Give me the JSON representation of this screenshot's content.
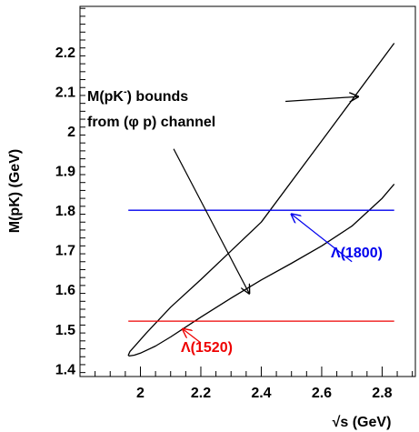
{
  "chart_data": {
    "type": "line",
    "xlabel": "√s (GeV)",
    "ylabel": "M(pK) (GeV)",
    "xlim": [
      1.8,
      2.91
    ],
    "ylim": [
      1.38,
      2.315
    ],
    "x_ticks": [
      2,
      2.2,
      2.4,
      2.6,
      2.8
    ],
    "x_tick_labels": [
      "2",
      "2.2",
      "2.4",
      "2.6",
      "2.8"
    ],
    "y_ticks": [
      1.4,
      1.5,
      1.6,
      1.7,
      1.8,
      1.9,
      2.0,
      2.1,
      2.2
    ],
    "y_tick_labels": [
      "1.4",
      "1.5",
      "1.6",
      "1.7",
      "1.8",
      "1.9",
      "2",
      "2.1",
      "2.2"
    ],
    "grid": false,
    "series": [
      {
        "color": "#000000",
        "x": [
          2.84,
          2.6,
          2.4,
          2.2,
          2.1,
          2.02,
          1.985,
          1.965,
          1.96,
          1.963,
          1.98,
          2.0,
          2.05,
          2.1,
          2.15,
          2.2,
          2.3,
          2.4,
          2.5,
          2.6,
          2.7,
          2.8,
          2.84
        ],
        "y": [
          2.222,
          1.975,
          1.77,
          1.625,
          1.555,
          1.49,
          1.46,
          1.443,
          1.434,
          1.432,
          1.434,
          1.439,
          1.457,
          1.48,
          1.505,
          1.53,
          1.578,
          1.624,
          1.666,
          1.71,
          1.76,
          1.83,
          1.866
        ]
      },
      {
        "name": "Λ(1800)",
        "color": "#0000ee",
        "x": [
          1.96,
          2.84
        ],
        "y": [
          1.8,
          1.8
        ]
      },
      {
        "name": "Λ(1520)",
        "color": "#ee0000",
        "x": [
          1.96,
          2.84
        ],
        "y": [
          1.52,
          1.52
        ]
      }
    ],
    "annotations": [
      {
        "id": "bounds",
        "text_line1": "M(pK",
        "superscript": "-",
        "text_line1_end": ") bounds",
        "text_line2": "from (φ p) channel",
        "color": "#000000",
        "arrows": [
          {
            "from": [
              2.48,
              2.075
            ],
            "to": [
              2.72,
              2.087
            ]
          },
          {
            "from": [
              2.11,
              1.955
            ],
            "to": [
              2.36,
              1.59
            ]
          }
        ]
      },
      {
        "id": "lambda1800",
        "text": "Λ(1800)",
        "color": "#0000ee",
        "arrow": {
          "from": [
            2.7,
            1.67
          ],
          "to": [
            2.5,
            1.79
          ]
        }
      },
      {
        "id": "lambda1520",
        "text": "Λ(1520)",
        "color": "#ee0000",
        "arrow": {
          "from": [
            2.2,
            1.465
          ],
          "to": [
            2.14,
            1.5
          ]
        }
      }
    ]
  },
  "colors": {
    "axis": "#000000",
    "blue": "#0000ee",
    "red": "#ee0000"
  }
}
